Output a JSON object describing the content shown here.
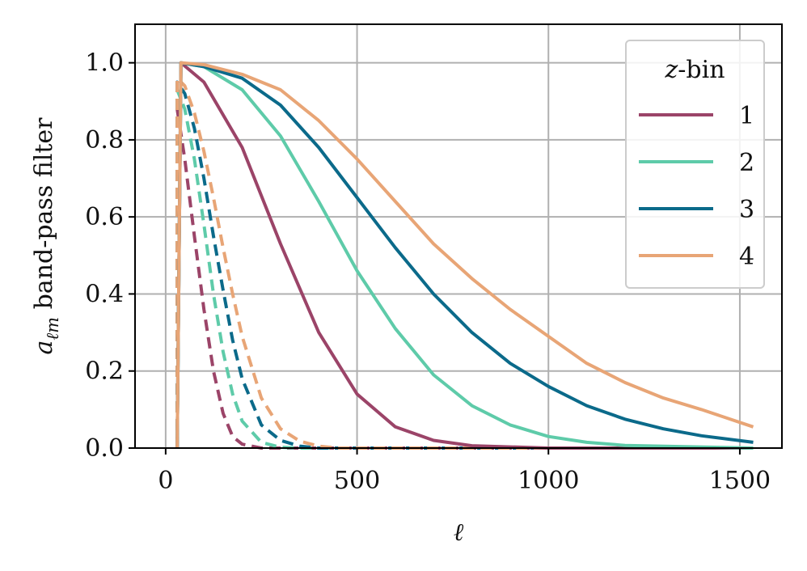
{
  "chart_data": {
    "type": "line",
    "xlabel": "ℓ",
    "ylabel_main": "a",
    "ylabel_sub": "ℓm",
    "ylabel_rest": " band-pass filter",
    "xlim": [
      -80,
      1610
    ],
    "ylim": [
      0.0,
      1.1
    ],
    "xticks": [
      0,
      500,
      1000,
      1500
    ],
    "xtick_labels": [
      "0",
      "500",
      "1000",
      "1500"
    ],
    "yticks": [
      0.0,
      0.2,
      0.4,
      0.6,
      0.8,
      1.0
    ],
    "ytick_labels": [
      "0.0",
      "0.2",
      "0.4",
      "0.6",
      "0.8",
      "1.0"
    ],
    "grid": true,
    "legend": {
      "title_italic": "z",
      "title_rest": "-bin",
      "placement": "top-right",
      "entries": [
        "1",
        "2",
        "3",
        "4"
      ]
    },
    "ell_min": 30,
    "ell_max": 1535,
    "series": [
      {
        "name": "1",
        "color": "#9b4468",
        "style": "solid",
        "peak": [
          40,
          1.0
        ],
        "points": [
          [
            100,
            0.95
          ],
          [
            200,
            0.78
          ],
          [
            300,
            0.53
          ],
          [
            400,
            0.3
          ],
          [
            500,
            0.14
          ],
          [
            600,
            0.055
          ],
          [
            700,
            0.02
          ],
          [
            800,
            0.006
          ],
          [
            1000,
            0.0
          ],
          [
            1535,
            0.0
          ]
        ]
      },
      {
        "name": "2",
        "color": "#5ecba9",
        "style": "solid",
        "peak": [
          40,
          1.0
        ],
        "points": [
          [
            100,
            0.99
          ],
          [
            200,
            0.93
          ],
          [
            300,
            0.81
          ],
          [
            400,
            0.64
          ],
          [
            500,
            0.46
          ],
          [
            600,
            0.31
          ],
          [
            700,
            0.19
          ],
          [
            800,
            0.11
          ],
          [
            900,
            0.06
          ],
          [
            1000,
            0.03
          ],
          [
            1100,
            0.015
          ],
          [
            1200,
            0.007
          ],
          [
            1535,
            0.0
          ]
        ]
      },
      {
        "name": "3",
        "color": "#0b6a8a",
        "style": "solid",
        "peak": [
          40,
          1.0
        ],
        "points": [
          [
            100,
            0.99
          ],
          [
            200,
            0.96
          ],
          [
            300,
            0.89
          ],
          [
            400,
            0.78
          ],
          [
            500,
            0.65
          ],
          [
            600,
            0.52
          ],
          [
            700,
            0.4
          ],
          [
            800,
            0.3
          ],
          [
            900,
            0.22
          ],
          [
            1000,
            0.16
          ],
          [
            1100,
            0.11
          ],
          [
            1200,
            0.075
          ],
          [
            1300,
            0.05
          ],
          [
            1400,
            0.032
          ],
          [
            1535,
            0.015
          ]
        ]
      },
      {
        "name": "4",
        "color": "#e8a576",
        "style": "solid",
        "peak": [
          40,
          1.0
        ],
        "points": [
          [
            100,
            0.995
          ],
          [
            200,
            0.97
          ],
          [
            300,
            0.93
          ],
          [
            400,
            0.85
          ],
          [
            500,
            0.75
          ],
          [
            600,
            0.64
          ],
          [
            700,
            0.53
          ],
          [
            800,
            0.44
          ],
          [
            900,
            0.36
          ],
          [
            1000,
            0.29
          ],
          [
            1100,
            0.22
          ],
          [
            1200,
            0.17
          ],
          [
            1300,
            0.13
          ],
          [
            1400,
            0.1
          ],
          [
            1535,
            0.055
          ]
        ]
      },
      {
        "name": "1",
        "color": "#9b4468",
        "style": "dashed",
        "peak": [
          30,
          0.88
        ],
        "points": [
          [
            50,
            0.75
          ],
          [
            75,
            0.55
          ],
          [
            100,
            0.36
          ],
          [
            125,
            0.2
          ],
          [
            150,
            0.09
          ],
          [
            175,
            0.03
          ],
          [
            200,
            0.01
          ],
          [
            250,
            0.0
          ],
          [
            1535,
            0.0
          ]
        ]
      },
      {
        "name": "2",
        "color": "#5ecba9",
        "style": "dashed",
        "peak": [
          30,
          0.93
        ],
        "points": [
          [
            50,
            0.88
          ],
          [
            75,
            0.75
          ],
          [
            100,
            0.58
          ],
          [
            125,
            0.4
          ],
          [
            150,
            0.25
          ],
          [
            175,
            0.14
          ],
          [
            200,
            0.07
          ],
          [
            250,
            0.015
          ],
          [
            300,
            0.002
          ],
          [
            350,
            0.0
          ],
          [
            1535,
            0.0
          ]
        ]
      },
      {
        "name": "3",
        "color": "#0b6a8a",
        "style": "dashed",
        "peak": [
          30,
          0.95
        ],
        "points": [
          [
            50,
            0.92
          ],
          [
            75,
            0.83
          ],
          [
            100,
            0.7
          ],
          [
            125,
            0.55
          ],
          [
            150,
            0.41
          ],
          [
            175,
            0.28
          ],
          [
            200,
            0.18
          ],
          [
            250,
            0.06
          ],
          [
            300,
            0.02
          ],
          [
            350,
            0.005
          ],
          [
            400,
            0.0
          ],
          [
            1535,
            0.0
          ]
        ]
      },
      {
        "name": "4",
        "color": "#e8a576",
        "style": "dashed",
        "peak": [
          30,
          0.96
        ],
        "points": [
          [
            50,
            0.94
          ],
          [
            75,
            0.87
          ],
          [
            100,
            0.77
          ],
          [
            125,
            0.65
          ],
          [
            150,
            0.52
          ],
          [
            175,
            0.4
          ],
          [
            200,
            0.29
          ],
          [
            250,
            0.13
          ],
          [
            300,
            0.05
          ],
          [
            350,
            0.018
          ],
          [
            400,
            0.005
          ],
          [
            450,
            0.0
          ],
          [
            1535,
            0.0
          ]
        ]
      }
    ]
  }
}
